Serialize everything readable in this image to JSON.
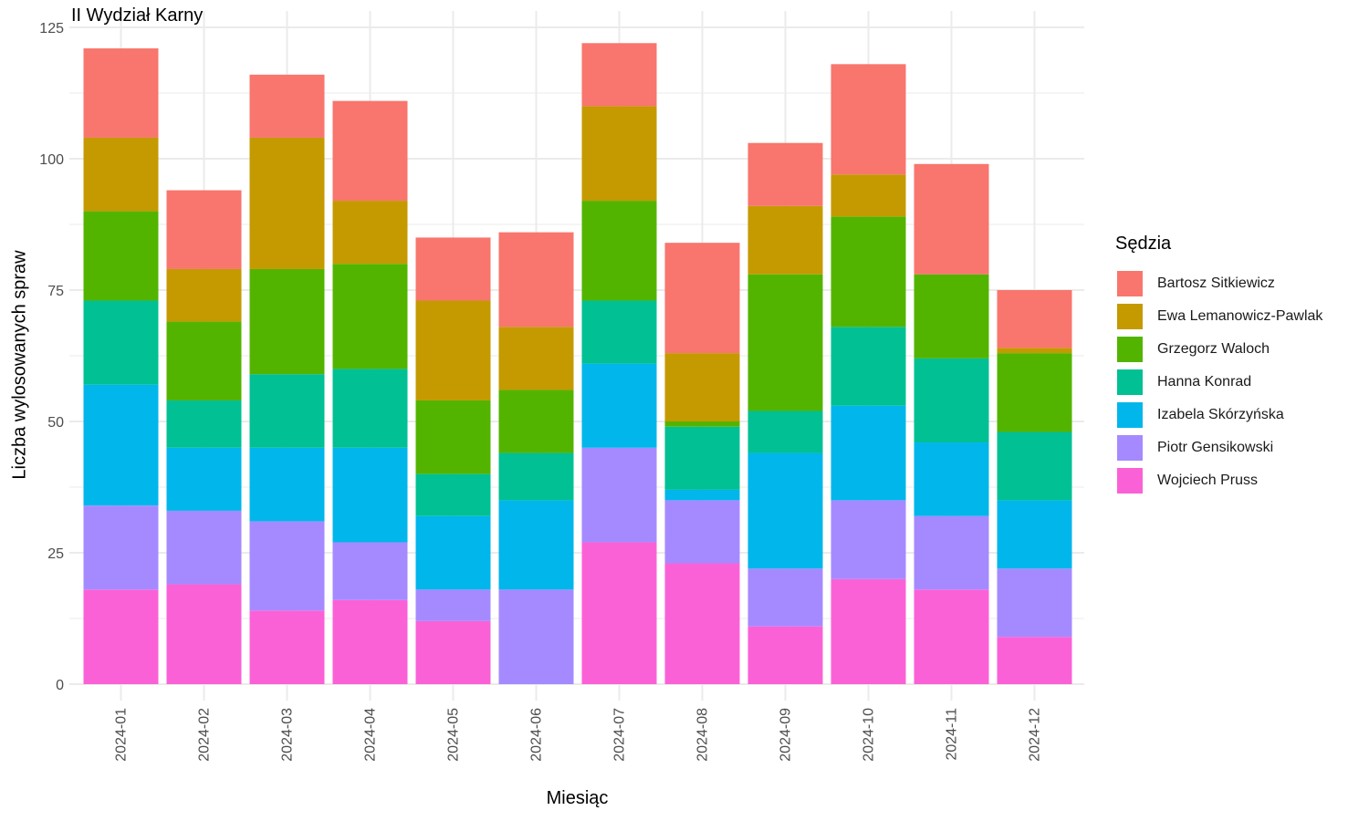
{
  "chart_data": {
    "type": "bar",
    "stacked": true,
    "title": "II Wydział Karny",
    "xlabel": "Miesiąc",
    "ylabel": "Liczba wylosowanych spraw",
    "ylim": [
      0,
      125
    ],
    "yticks": [
      0,
      25,
      50,
      75,
      100,
      125
    ],
    "grid": true,
    "legend_title": "Sędzia",
    "legend_position": "right",
    "categories": [
      "2024-01",
      "2024-02",
      "2024-03",
      "2024-04",
      "2024-05",
      "2024-06",
      "2024-07",
      "2024-08",
      "2024-09",
      "2024-10",
      "2024-11",
      "2024-12"
    ],
    "series": [
      {
        "name": "Bartosz Sitkiewicz",
        "color": "#F8766D",
        "values": [
          17,
          15,
          12,
          19,
          12,
          18,
          12,
          21,
          12,
          21,
          21,
          11
        ]
      },
      {
        "name": "Ewa Lemanowicz-Pawlak",
        "color": "#C49A00",
        "values": [
          14,
          10,
          25,
          12,
          19,
          12,
          18,
          13,
          13,
          8,
          0,
          1
        ]
      },
      {
        "name": "Grzegorz Waloch",
        "color": "#53B400",
        "values": [
          17,
          15,
          20,
          20,
          14,
          12,
          19,
          1,
          26,
          21,
          16,
          15
        ]
      },
      {
        "name": "Hanna Konrad",
        "color": "#00C094",
        "values": [
          16,
          9,
          14,
          15,
          8,
          9,
          12,
          12,
          8,
          15,
          16,
          13
        ]
      },
      {
        "name": "Izabela Skórzyńska",
        "color": "#00B6EB",
        "values": [
          23,
          12,
          14,
          18,
          14,
          17,
          16,
          2,
          22,
          18,
          14,
          13
        ]
      },
      {
        "name": "Piotr Gensikowski",
        "color": "#A58AFF",
        "values": [
          16,
          14,
          17,
          11,
          6,
          18,
          18,
          12,
          11,
          15,
          14,
          13
        ]
      },
      {
        "name": "Wojciech Pruss",
        "color": "#FB61D7",
        "values": [
          18,
          19,
          14,
          16,
          12,
          0,
          27,
          23,
          11,
          20,
          18,
          9
        ]
      }
    ]
  }
}
